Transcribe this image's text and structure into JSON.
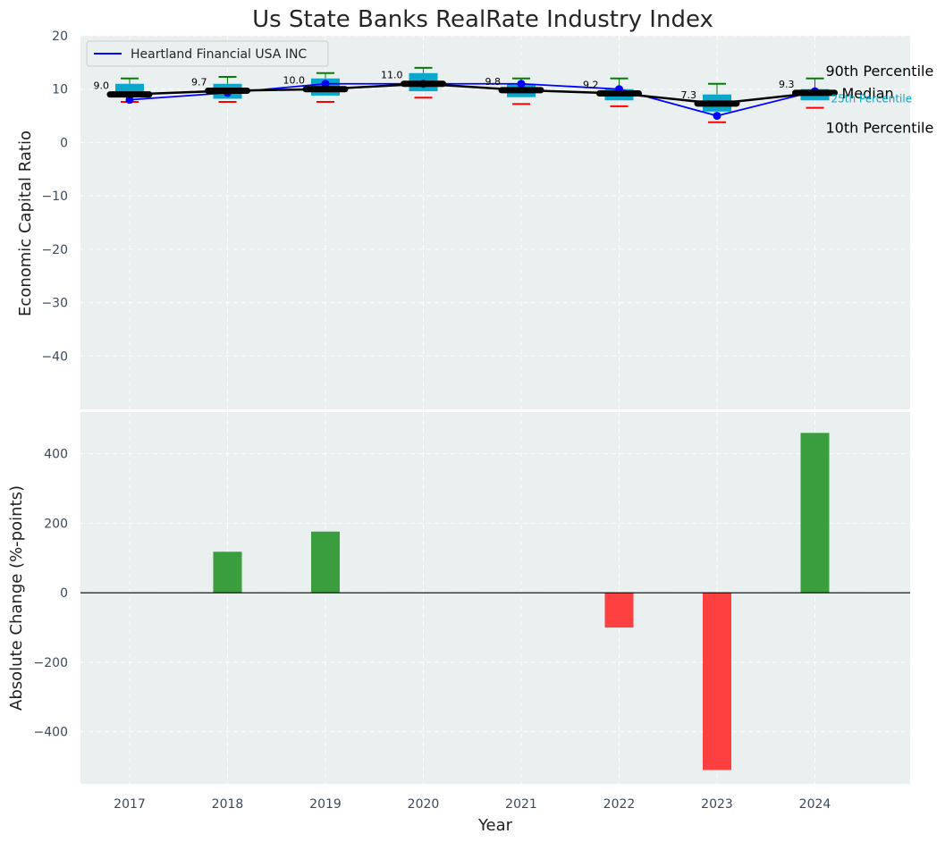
{
  "chart_data": [
    {
      "type": "line",
      "title": "Us State Banks RealRate Industry Index",
      "ylabel": "Economic Capital Ratio",
      "ylim": [
        -50,
        20
      ],
      "yticks": [
        20,
        10,
        0,
        -10,
        -20,
        -30,
        -40
      ],
      "x": [
        "2017",
        "2018",
        "2019",
        "2020",
        "2021",
        "2022",
        "2023",
        "2024"
      ],
      "grid": true,
      "legend_position": "top-left",
      "series": [
        {
          "name": "Heartland Financial USA INC",
          "color": "#0000ff",
          "values": [
            8.0,
            9.3,
            11.0,
            11.0,
            11.0,
            10.0,
            5.0,
            9.6
          ]
        }
      ],
      "median": {
        "label": "Median",
        "color": "#000000",
        "values": [
          9.0,
          9.7,
          10.0,
          11.0,
          9.8,
          9.2,
          7.3,
          9.3
        ],
        "value_labels": [
          "9.0",
          "9.7",
          "10.0",
          "11.0",
          "9.8",
          "9.2",
          "7.3",
          "9.3"
        ]
      },
      "percentile_25_75": {
        "label": "25th Percentile",
        "color": "#0aa6cc",
        "low": [
          8.5,
          8.2,
          8.8,
          9.6,
          8.5,
          7.9,
          5.8,
          7.9
        ],
        "high": [
          11.0,
          11.0,
          12.0,
          13.0,
          11.0,
          10.0,
          9.0,
          10.0
        ]
      },
      "percentile_90": {
        "label": "90th Percentile",
        "color": "#008000",
        "values": [
          12.0,
          12.3,
          13.0,
          14.0,
          12.0,
          12.0,
          11.0,
          12.0
        ]
      },
      "percentile_10": {
        "label": "10th Percentile",
        "color": "#ff0000",
        "values": [
          7.6,
          7.6,
          7.6,
          8.4,
          7.2,
          6.8,
          3.8,
          6.5
        ]
      }
    },
    {
      "type": "bar",
      "xlabel": "Year",
      "ylabel": "Absolute Change (%-points)",
      "ylim": [
        -550,
        520
      ],
      "yticks": [
        400,
        200,
        0,
        -200,
        -400
      ],
      "categories": [
        "2017",
        "2018",
        "2019",
        "2020",
        "2021",
        "2022",
        "2023",
        "2024"
      ],
      "values": [
        0,
        118,
        176,
        0,
        0,
        -100,
        -510,
        460
      ],
      "positive_color": "#3a9d3e",
      "negative_color": "#ff4040",
      "grid": true
    }
  ]
}
